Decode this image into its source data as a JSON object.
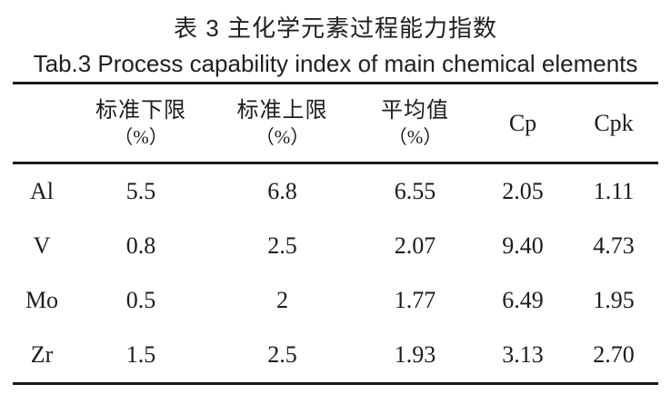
{
  "caption": {
    "zh": "表 3 主化学元素过程能力指数",
    "en": "Tab.3 Process capability index of main chemical elements"
  },
  "table": {
    "header": [
      {
        "line1": "",
        "line2": ""
      },
      {
        "line1": "标准下限",
        "line2": "（%）"
      },
      {
        "line1": "标准上限",
        "line2": "（%）"
      },
      {
        "line1": "平均值",
        "line2": "（%）"
      },
      {
        "line1": "Cp",
        "line2": ""
      },
      {
        "line1": "Cpk",
        "line2": ""
      }
    ]
  },
  "chart_data": {
    "type": "table",
    "title_zh": "表 3 主化学元素过程能力指数",
    "title_en": "Tab.3 Process capability index of main chemical elements",
    "columns": [
      "",
      "标准下限（%）",
      "标准上限（%）",
      "平均值（%）",
      "Cp",
      "Cpk"
    ],
    "rows": [
      [
        "Al",
        "5.5",
        "6.8",
        "6.55",
        "2.05",
        "1.11"
      ],
      [
        "V",
        "0.8",
        "2.5",
        "2.07",
        "9.40",
        "4.73"
      ],
      [
        "Mo",
        "0.5",
        "2",
        "1.77",
        "6.49",
        "1.95"
      ],
      [
        "Zr",
        "1.5",
        "2.5",
        "1.93",
        "3.13",
        "2.70"
      ]
    ]
  },
  "colors": {
    "text": "#1c1c1c",
    "rule": "#1a1a1a",
    "background": "#ffffff"
  }
}
